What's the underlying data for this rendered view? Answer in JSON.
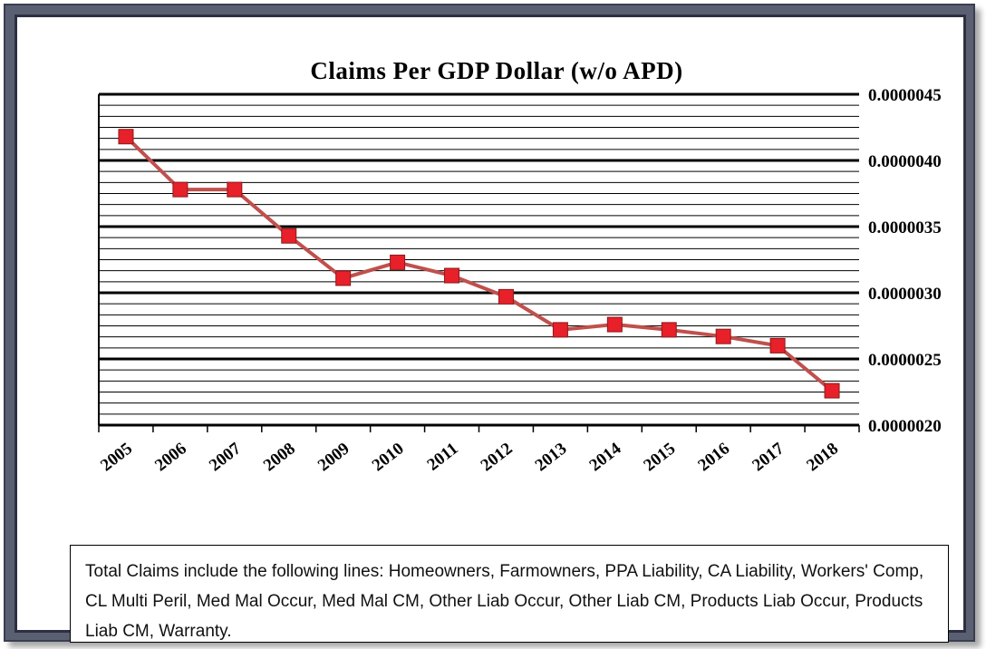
{
  "chart_data": {
    "type": "line",
    "title": "Claims Per GDP Dollar (w/o APD)",
    "xlabel": "",
    "ylabel": "",
    "categories": [
      "2005",
      "2006",
      "2007",
      "2008",
      "2009",
      "2010",
      "2011",
      "2012",
      "2013",
      "2014",
      "2015",
      "2016",
      "2017",
      "2018"
    ],
    "series": [
      {
        "values": [
          4.18e-06,
          3.78e-06,
          3.78e-06,
          3.43e-06,
          3.11e-06,
          3.23e-06,
          3.13e-06,
          2.97e-06,
          2.72e-06,
          2.76e-06,
          2.72e-06,
          2.67e-06,
          2.6e-06,
          2.26e-06
        ]
      }
    ],
    "ylim": [
      2e-06,
      4.5e-06
    ],
    "yticks": [
      "0.0000020",
      "0.0000025",
      "0.0000030",
      "0.0000035",
      "0.0000040",
      "0.0000045"
    ],
    "y_axis_side": "right",
    "grid": true,
    "colors": {
      "line": "#c0504d",
      "marker": "#e8202a",
      "marker_edge": "#8a1a1a"
    }
  },
  "caption": "Total Claims include the following lines: Homeowners, Farmowners, PPA Liability, CA Liability, Workers' Comp, CL Multi Peril, Med Mal Occur, Med Mal CM, Other Liab Occur, Other Liab CM, Products Liab Occur, Products Liab CM, Warranty."
}
